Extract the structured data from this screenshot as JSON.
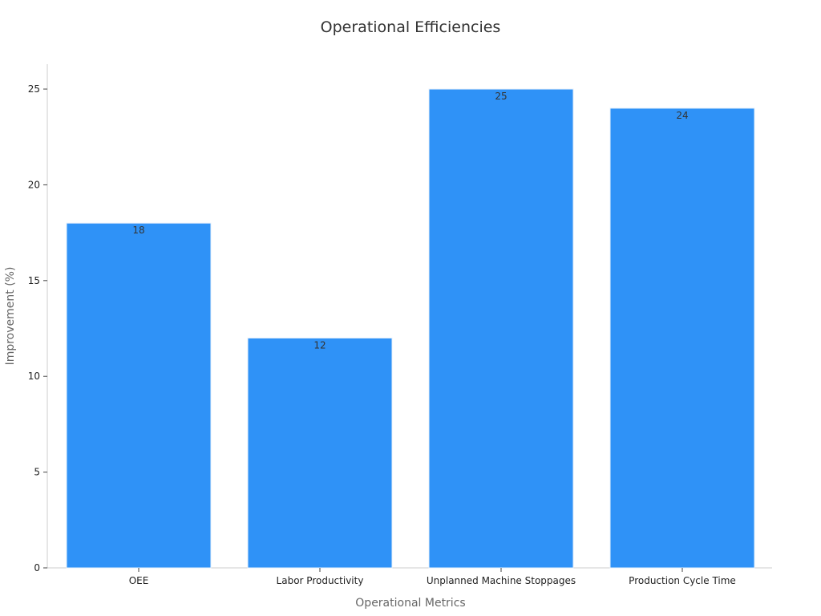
{
  "chart_data": {
    "type": "bar",
    "title": "Operational Efficiencies",
    "xlabel": "Operational Metrics",
    "ylabel": "Improvement (%)",
    "categories": [
      "OEE",
      "Labor Productivity",
      "Unplanned Machine Stoppages",
      "Production Cycle Time"
    ],
    "values": [
      18,
      12,
      25,
      24
    ],
    "data_labels": [
      "18",
      "12",
      "25",
      "24"
    ],
    "ylim": [
      0,
      26.3
    ],
    "yticks": [
      0,
      5,
      10,
      15,
      20,
      25
    ],
    "ytick_labels": [
      "0",
      "5",
      "10",
      "15",
      "20",
      "25"
    ],
    "bar_color": "#2f92f7",
    "bar_edge_color": "#e6f0fb",
    "grid": false,
    "legend": "none"
  }
}
